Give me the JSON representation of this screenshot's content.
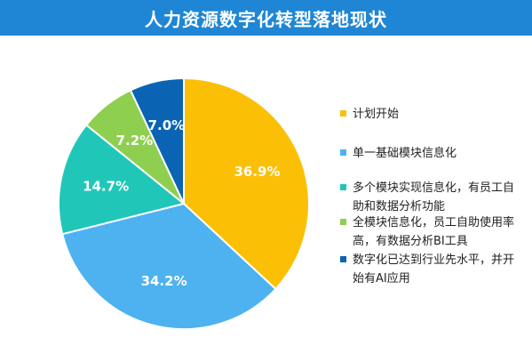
{
  "title": "人力资源数字化转型落地现状",
  "chart_data": {
    "type": "pie",
    "title": "人力资源数字化转型落地现状",
    "slices": [
      {
        "label": "计划开始",
        "value": 36.9,
        "value_label": "36.9%",
        "color": "#fbbf06"
      },
      {
        "label": "单一基础模块信息化",
        "value": 34.2,
        "value_label": "34.2%",
        "color": "#4db2ef"
      },
      {
        "label": "多个模块实现信息化，有员工自助和数据分析功能",
        "value": 14.7,
        "value_label": "14.7%",
        "color": "#20c7b8"
      },
      {
        "label": "全模块信息化，员工自助使用率高，有数据分析BI工具",
        "value": 7.2,
        "value_label": "7.2%",
        "color": "#8ecf4f"
      },
      {
        "label": "数字化已达到行业先水平，并开始有AI应用",
        "value": 7.0,
        "value_label": "7.0%",
        "color": "#0a64b3"
      }
    ],
    "start_angle_deg": 0,
    "direction": "clockwise",
    "legend_position": "right"
  }
}
